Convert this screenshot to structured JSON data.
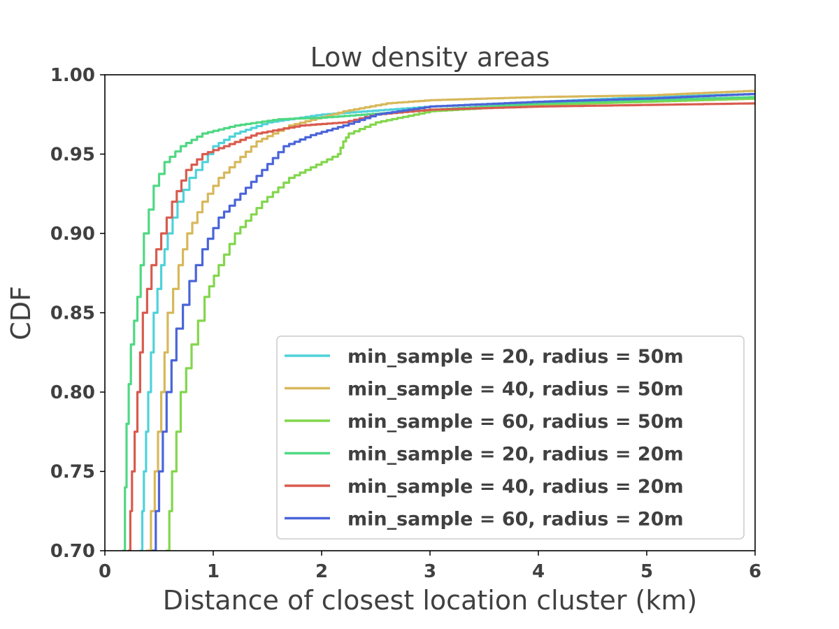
{
  "chart_data": {
    "type": "line",
    "title": "Low density areas",
    "xlabel": "Distance of closest location cluster (km)",
    "ylabel": "CDF",
    "xlim": [
      0,
      6
    ],
    "ylim": [
      0.7,
      1.0
    ],
    "xticks": [
      "0",
      "1",
      "2",
      "3",
      "4",
      "5",
      "6"
    ],
    "yticks": [
      "0.70",
      "0.75",
      "0.80",
      "0.85",
      "0.90",
      "0.95",
      "1.00"
    ],
    "legend_position": "lower-right",
    "series": [
      {
        "name": "min_sample = 20, radius = 50m",
        "color": "#4fd2d9",
        "points": [
          [
            0.33,
            0.7
          ],
          [
            0.36,
            0.75
          ],
          [
            0.4,
            0.8
          ],
          [
            0.45,
            0.85
          ],
          [
            0.52,
            0.88
          ],
          [
            0.58,
            0.9
          ],
          [
            0.67,
            0.92
          ],
          [
            0.78,
            0.935
          ],
          [
            0.9,
            0.945
          ],
          [
            1.0,
            0.955
          ],
          [
            1.2,
            0.963
          ],
          [
            1.5,
            0.97
          ],
          [
            2.0,
            0.975
          ],
          [
            3.0,
            0.98
          ],
          [
            4.0,
            0.983
          ],
          [
            5.0,
            0.986
          ],
          [
            6.0,
            0.988
          ]
        ]
      },
      {
        "name": "min_sample = 40, radius = 50m",
        "color": "#d7b85a",
        "points": [
          [
            0.39,
            0.7
          ],
          [
            0.46,
            0.75
          ],
          [
            0.52,
            0.8
          ],
          [
            0.58,
            0.85
          ],
          [
            0.68,
            0.88
          ],
          [
            0.76,
            0.9
          ],
          [
            0.9,
            0.92
          ],
          [
            1.05,
            0.935
          ],
          [
            1.2,
            0.945
          ],
          [
            1.4,
            0.958
          ],
          [
            1.7,
            0.968
          ],
          [
            2.2,
            0.977
          ],
          [
            2.6,
            0.982
          ],
          [
            3.0,
            0.984
          ],
          [
            4.0,
            0.986
          ],
          [
            5.0,
            0.987
          ],
          [
            6.0,
            0.99
          ]
        ]
      },
      {
        "name": "min_sample = 60, radius = 50m",
        "color": "#82d64c",
        "points": [
          [
            0.57,
            0.7
          ],
          [
            0.62,
            0.75
          ],
          [
            0.7,
            0.8
          ],
          [
            0.8,
            0.83
          ],
          [
            0.92,
            0.86
          ],
          [
            1.05,
            0.88
          ],
          [
            1.2,
            0.9
          ],
          [
            1.45,
            0.92
          ],
          [
            1.7,
            0.935
          ],
          [
            2.0,
            0.945
          ],
          [
            2.15,
            0.95
          ],
          [
            2.2,
            0.958
          ],
          [
            2.25,
            0.963
          ],
          [
            2.5,
            0.97
          ],
          [
            3.0,
            0.977
          ],
          [
            4.0,
            0.981
          ],
          [
            5.0,
            0.983
          ],
          [
            6.0,
            0.985
          ]
        ]
      },
      {
        "name": "min_sample = 20, radius = 20m",
        "color": "#4fd883",
        "points": [
          [
            0.17,
            0.7
          ],
          [
            0.2,
            0.78
          ],
          [
            0.24,
            0.83
          ],
          [
            0.3,
            0.86
          ],
          [
            0.36,
            0.9
          ],
          [
            0.45,
            0.93
          ],
          [
            0.55,
            0.945
          ],
          [
            0.7,
            0.955
          ],
          [
            0.9,
            0.963
          ],
          [
            1.2,
            0.968
          ],
          [
            1.6,
            0.972
          ],
          [
            2.0,
            0.973
          ],
          [
            3.0,
            0.978
          ],
          [
            4.0,
            0.982
          ],
          [
            5.0,
            0.984
          ],
          [
            6.0,
            0.986
          ]
        ]
      },
      {
        "name": "min_sample = 40, radius = 20m",
        "color": "#d95b4e",
        "points": [
          [
            0.22,
            0.7
          ],
          [
            0.25,
            0.75
          ],
          [
            0.3,
            0.8
          ],
          [
            0.35,
            0.85
          ],
          [
            0.43,
            0.88
          ],
          [
            0.52,
            0.9
          ],
          [
            0.62,
            0.92
          ],
          [
            0.75,
            0.94
          ],
          [
            0.9,
            0.95
          ],
          [
            1.1,
            0.955
          ],
          [
            1.4,
            0.963
          ],
          [
            1.8,
            0.968
          ],
          [
            2.2,
            0.97
          ],
          [
            2.5,
            0.975
          ],
          [
            3.0,
            0.978
          ],
          [
            4.0,
            0.98
          ],
          [
            5.0,
            0.981
          ],
          [
            6.0,
            0.982
          ]
        ]
      },
      {
        "name": "min_sample = 60, radius = 20m",
        "color": "#4a64d9",
        "points": [
          [
            0.44,
            0.7
          ],
          [
            0.5,
            0.75
          ],
          [
            0.57,
            0.8
          ],
          [
            0.66,
            0.84
          ],
          [
            0.78,
            0.87
          ],
          [
            0.9,
            0.89
          ],
          [
            1.05,
            0.91
          ],
          [
            1.25,
            0.925
          ],
          [
            1.45,
            0.94
          ],
          [
            1.65,
            0.955
          ],
          [
            1.9,
            0.962
          ],
          [
            2.2,
            0.968
          ],
          [
            2.5,
            0.975
          ],
          [
            3.0,
            0.98
          ],
          [
            4.0,
            0.983
          ],
          [
            5.0,
            0.985
          ],
          [
            6.0,
            0.988
          ]
        ]
      }
    ]
  }
}
